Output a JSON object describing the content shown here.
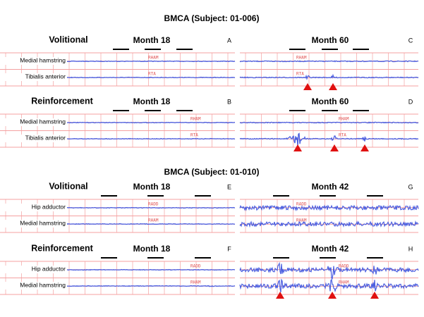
{
  "sections": [
    {
      "title": "BMCA (Subject: 01-006)",
      "rows": [
        {
          "condition": "Volitional",
          "channels": [
            "Medial hamstring",
            "Tibialis anterior"
          ],
          "panels": [
            {
              "month": "Month 18",
              "letter": "A",
              "trace_labels": [
                "RHAM",
                "RTA"
              ]
            },
            {
              "month": "Month 60",
              "letter": "C",
              "trace_labels": [
                "RHAM",
                "RTA"
              ]
            }
          ]
        },
        {
          "condition": "Reinforcement",
          "channels": [
            "Medial hamstring",
            "Tibialis anterior"
          ],
          "panels": [
            {
              "month": "Month 18",
              "letter": "B",
              "trace_labels": [
                "RHAM",
                "RTA"
              ]
            },
            {
              "month": "Month 60",
              "letter": "D",
              "trace_labels": [
                "RHAM",
                "RTA"
              ]
            }
          ]
        }
      ]
    },
    {
      "title": "BMCA (Subject: 01-010)",
      "rows": [
        {
          "condition": "Volitional",
          "channels": [
            "Hip adductor",
            "Medial hamstring"
          ],
          "panels": [
            {
              "month": "Month 18",
              "letter": "E",
              "trace_labels": [
                "RADD",
                "RHAM"
              ]
            },
            {
              "month": "Month 42",
              "letter": "G",
              "trace_labels": [
                "RADD",
                "RHAM"
              ]
            }
          ]
        },
        {
          "condition": "Reinforcement",
          "channels": [
            "Hip adductor",
            "Medial hamstring"
          ],
          "panels": [
            {
              "month": "Month 18",
              "letter": "F",
              "trace_labels": [
                "RADD",
                "RHAM"
              ]
            },
            {
              "month": "Month 42",
              "letter": "H",
              "trace_labels": [
                "RADD",
                "RHAM"
              ]
            }
          ]
        }
      ]
    }
  ]
}
